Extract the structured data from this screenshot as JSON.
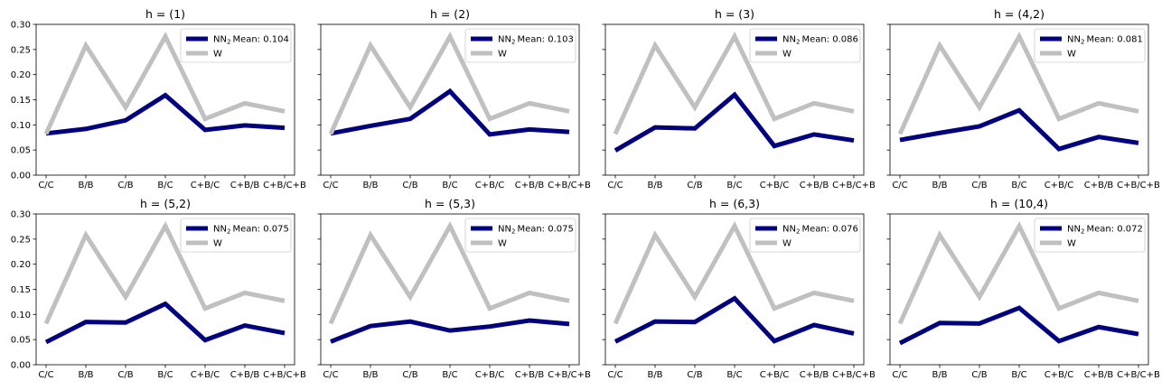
{
  "chart_data": [
    {
      "type": "line",
      "title": "h = (1)",
      "categories": [
        "C/C",
        "B/B",
        "C/B",
        "B/C",
        "C+B/C",
        "C+B/B",
        "C+B/C+B"
      ],
      "ylim": [
        0,
        0.3
      ],
      "yticks": [
        "0.00",
        "0.05",
        "0.10",
        "0.15",
        "0.20",
        "0.25",
        "0.30"
      ],
      "legend_position": "top-right",
      "series": [
        {
          "name": "Mean: 0.104",
          "name_prefix": "NN",
          "name_subscript": "2",
          "color": "#000080",
          "values": [
            0.083,
            0.092,
            0.109,
            0.159,
            0.09,
            0.099,
            0.094
          ]
        },
        {
          "name": "W",
          "color": "#c0c0c0",
          "values": [
            0.082,
            0.258,
            0.135,
            0.276,
            0.112,
            0.143,
            0.127
          ]
        }
      ]
    },
    {
      "type": "line",
      "title": "h = (2)",
      "categories": [
        "C/C",
        "B/B",
        "C/B",
        "B/C",
        "C+B/C",
        "C+B/B",
        "C+B/C+B"
      ],
      "ylim": [
        0,
        0.3
      ],
      "yticks": [
        "0.00",
        "0.05",
        "0.10",
        "0.15",
        "0.20",
        "0.25",
        "0.30"
      ],
      "legend_position": "top-right",
      "series": [
        {
          "name": "Mean: 0.103",
          "name_prefix": "NN",
          "name_subscript": "2",
          "color": "#000080",
          "values": [
            0.083,
            0.098,
            0.112,
            0.167,
            0.081,
            0.091,
            0.086
          ]
        },
        {
          "name": "W",
          "color": "#c0c0c0",
          "values": [
            0.082,
            0.258,
            0.135,
            0.276,
            0.112,
            0.143,
            0.127
          ]
        }
      ]
    },
    {
      "type": "line",
      "title": "h = (3)",
      "categories": [
        "C/C",
        "B/B",
        "C/B",
        "B/C",
        "C+B/C",
        "C+B/B",
        "C+B/C+B"
      ],
      "ylim": [
        0,
        0.3
      ],
      "yticks": [
        "0.00",
        "0.05",
        "0.10",
        "0.15",
        "0.20",
        "0.25",
        "0.30"
      ],
      "legend_position": "top-right",
      "series": [
        {
          "name": "Mean: 0.086",
          "name_prefix": "NN",
          "name_subscript": "2",
          "color": "#000080",
          "values": [
            0.049,
            0.095,
            0.093,
            0.16,
            0.058,
            0.081,
            0.069
          ]
        },
        {
          "name": "W",
          "color": "#c0c0c0",
          "values": [
            0.082,
            0.258,
            0.135,
            0.276,
            0.112,
            0.143,
            0.127
          ]
        }
      ]
    },
    {
      "type": "line",
      "title": "h = (4,2)",
      "categories": [
        "C/C",
        "B/B",
        "C/B",
        "B/C",
        "C+B/C",
        "C+B/B",
        "C+B/C+B"
      ],
      "ylim": [
        0,
        0.3
      ],
      "yticks": [
        "0.00",
        "0.05",
        "0.10",
        "0.15",
        "0.20",
        "0.25",
        "0.30"
      ],
      "legend_position": "top-right",
      "series": [
        {
          "name": "Mean: 0.081",
          "name_prefix": "NN",
          "name_subscript": "2",
          "color": "#000080",
          "values": [
            0.07,
            0.084,
            0.097,
            0.129,
            0.052,
            0.076,
            0.064
          ]
        },
        {
          "name": "W",
          "color": "#c0c0c0",
          "values": [
            0.082,
            0.258,
            0.135,
            0.276,
            0.112,
            0.143,
            0.127
          ]
        }
      ]
    },
    {
      "type": "line",
      "title": "h = (5,2)",
      "categories": [
        "C/C",
        "B/B",
        "C/B",
        "B/C",
        "C+B/C",
        "C+B/B",
        "C+B/C+B"
      ],
      "ylim": [
        0,
        0.3
      ],
      "yticks": [
        "0.00",
        "0.05",
        "0.10",
        "0.15",
        "0.20",
        "0.25",
        "0.30"
      ],
      "legend_position": "top-right",
      "series": [
        {
          "name": "Mean: 0.075",
          "name_prefix": "NN",
          "name_subscript": "2",
          "color": "#000080",
          "values": [
            0.045,
            0.085,
            0.084,
            0.121,
            0.049,
            0.078,
            0.063
          ]
        },
        {
          "name": "W",
          "color": "#c0c0c0",
          "values": [
            0.082,
            0.258,
            0.135,
            0.276,
            0.112,
            0.143,
            0.127
          ]
        }
      ]
    },
    {
      "type": "line",
      "title": "h = (5,3)",
      "categories": [
        "C/C",
        "B/B",
        "C/B",
        "B/C",
        "C+B/C",
        "C+B/B",
        "C+B/C+B"
      ],
      "ylim": [
        0,
        0.3
      ],
      "yticks": [
        "0.00",
        "0.05",
        "0.10",
        "0.15",
        "0.20",
        "0.25",
        "0.30"
      ],
      "legend_position": "top-right",
      "series": [
        {
          "name": "Mean: 0.075",
          "name_prefix": "NN",
          "name_subscript": "2",
          "color": "#000080",
          "values": [
            0.046,
            0.077,
            0.086,
            0.068,
            0.076,
            0.088,
            0.081
          ]
        },
        {
          "name": "W",
          "color": "#c0c0c0",
          "values": [
            0.082,
            0.258,
            0.135,
            0.276,
            0.112,
            0.143,
            0.127
          ]
        }
      ]
    },
    {
      "type": "line",
      "title": "h = (6,3)",
      "categories": [
        "C/C",
        "B/B",
        "C/B",
        "B/C",
        "C+B/C",
        "C+B/B",
        "C+B/C+B"
      ],
      "ylim": [
        0,
        0.3
      ],
      "yticks": [
        "0.00",
        "0.05",
        "0.10",
        "0.15",
        "0.20",
        "0.25",
        "0.30"
      ],
      "legend_position": "top-right",
      "series": [
        {
          "name": "Mean: 0.076",
          "name_prefix": "NN",
          "name_subscript": "2",
          "color": "#000080",
          "values": [
            0.046,
            0.086,
            0.085,
            0.132,
            0.047,
            0.079,
            0.062
          ]
        },
        {
          "name": "W",
          "color": "#c0c0c0",
          "values": [
            0.082,
            0.258,
            0.135,
            0.276,
            0.112,
            0.143,
            0.127
          ]
        }
      ]
    },
    {
      "type": "line",
      "title": "h = (10,4)",
      "categories": [
        "C/C",
        "B/B",
        "C/B",
        "B/C",
        "C+B/C",
        "C+B/B",
        "C+B/C+B"
      ],
      "ylim": [
        0,
        0.3
      ],
      "yticks": [
        "0.00",
        "0.05",
        "0.10",
        "0.15",
        "0.20",
        "0.25",
        "0.30"
      ],
      "legend_position": "top-right",
      "series": [
        {
          "name": "Mean: 0.072",
          "name_prefix": "NN",
          "name_subscript": "2",
          "color": "#000080",
          "values": [
            0.043,
            0.083,
            0.082,
            0.113,
            0.047,
            0.075,
            0.061
          ]
        },
        {
          "name": "W",
          "color": "#c0c0c0",
          "values": [
            0.082,
            0.258,
            0.135,
            0.276,
            0.112,
            0.143,
            0.127
          ]
        }
      ]
    }
  ]
}
